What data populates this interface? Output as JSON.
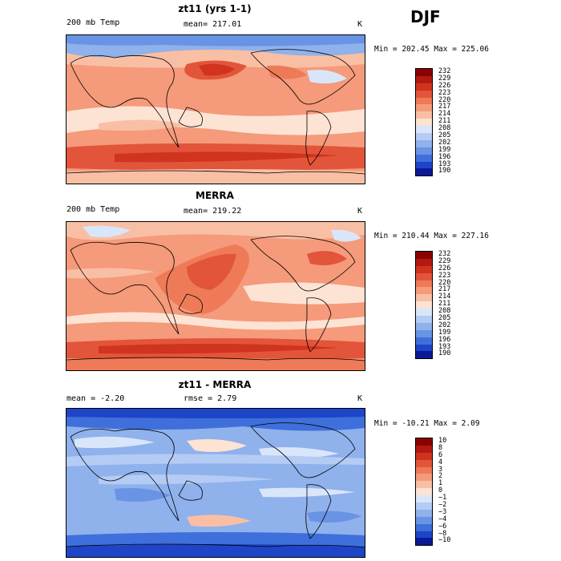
{
  "season": "DJF",
  "panels": [
    {
      "title": "zt11 (yrs 1-1)",
      "left_label": "200 mb Temp",
      "center_label": "mean= 217.01",
      "units": "K",
      "minmax": "Min = 202.45 Max = 225.06",
      "colorbar": {
        "labels": [
          "232",
          "229",
          "226",
          "223",
          "220",
          "217",
          "214",
          "211",
          "208",
          "205",
          "202",
          "199",
          "196",
          "193",
          "190"
        ],
        "colors": [
          "#8b0000",
          "#b21a10",
          "#d0331e",
          "#e2553a",
          "#ee7a58",
          "#f59a7a",
          "#f9bfa4",
          "#fde3d4",
          "#d9e6fa",
          "#b4ccf4",
          "#8fb1ec",
          "#6993e4",
          "#3f6fdb",
          "#1e45c8",
          "#0a1a96"
        ]
      }
    },
    {
      "title": "MERRA",
      "left_label": "200 mb Temp",
      "center_label": "mean= 219.22",
      "units": "K",
      "minmax": "Min = 210.44 Max = 227.16",
      "colorbar": {
        "labels": [
          "232",
          "229",
          "226",
          "223",
          "220",
          "217",
          "214",
          "211",
          "208",
          "205",
          "202",
          "199",
          "196",
          "193",
          "190"
        ],
        "colors": [
          "#8b0000",
          "#b21a10",
          "#d0331e",
          "#e2553a",
          "#ee7a58",
          "#f59a7a",
          "#f9bfa4",
          "#fde3d4",
          "#d9e6fa",
          "#b4ccf4",
          "#8fb1ec",
          "#6993e4",
          "#3f6fdb",
          "#1e45c8",
          "#0a1a96"
        ]
      }
    },
    {
      "title": "zt11 - MERRA",
      "left_label": "mean =   -2.20",
      "center_label": "rmse =    2.79",
      "units": "K",
      "minmax": "Min = -10.21 Max =   2.09",
      "colorbar": {
        "labels": [
          "10",
          "8",
          "6",
          "4",
          "3",
          "2",
          "1",
          "0",
          "−1",
          "−2",
          "−3",
          "−4",
          "−6",
          "−8",
          "−10"
        ],
        "colors": [
          "#8b0000",
          "#b21a10",
          "#d0331e",
          "#e2553a",
          "#ee7a58",
          "#f59a7a",
          "#f9bfa4",
          "#fde3d4",
          "#d9e6fa",
          "#b4ccf4",
          "#8fb1ec",
          "#6993e4",
          "#3f6fdb",
          "#1e45c8",
          "#0a1a96"
        ]
      }
    }
  ]
}
